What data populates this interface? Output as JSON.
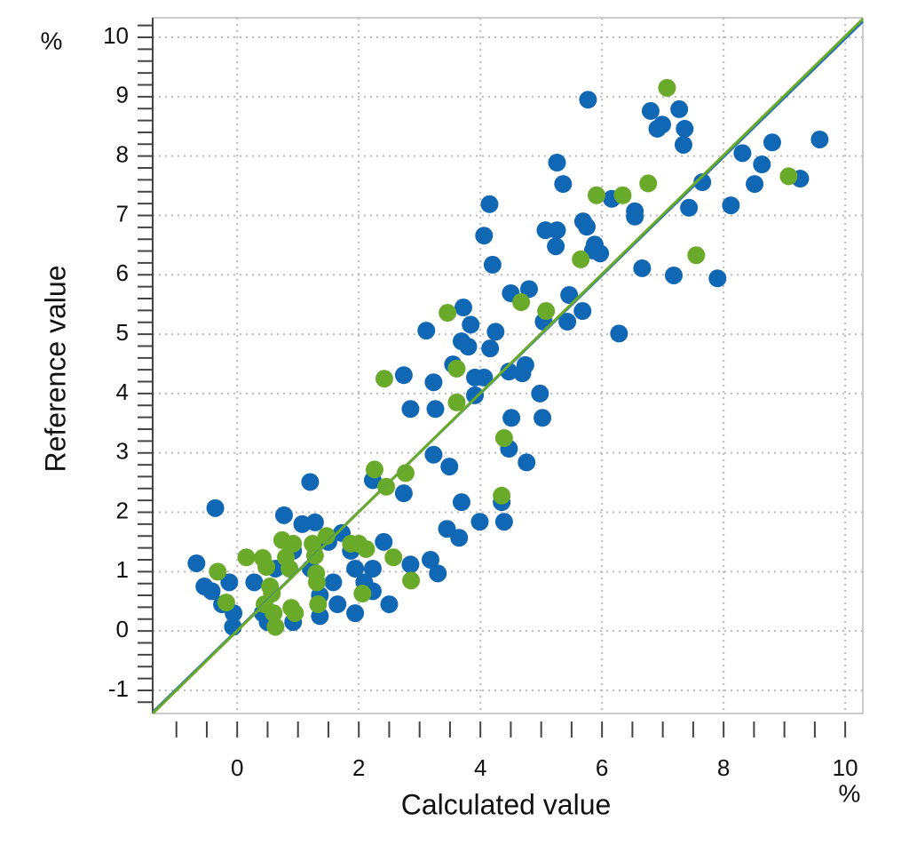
{
  "chart_data": {
    "type": "scatter",
    "x_label": "Calculated value",
    "y_label": "Reference value",
    "x_unit": "%",
    "y_unit": "%",
    "xlim": [
      -1.39,
      10.29
    ],
    "ylim": [
      -1.39,
      10.33
    ],
    "xticks": [
      0,
      2,
      4,
      6,
      8,
      10
    ],
    "yticks": [
      -1,
      0,
      1,
      2,
      3,
      4,
      5,
      6,
      7,
      8,
      9,
      10
    ],
    "grid": true,
    "series": [
      {
        "color": "#1068b5",
        "x": [
          -0.67,
          -0.36,
          -0.54,
          -0.42,
          -0.25,
          -0.06,
          -0.07,
          -0.13,
          0.28,
          0.42,
          0.5,
          0.63,
          0.77,
          1.2,
          1.07,
          1.28,
          0.92,
          1.21,
          1.5,
          1.72,
          1.87,
          1.94,
          2.09,
          2.23,
          2.41,
          1.58,
          1.36,
          1.65,
          1.94,
          0.92,
          1.36,
          2.23,
          2.5,
          2.23,
          2.74,
          2.85,
          2.74,
          2.85,
          3.18,
          3.23,
          3.11,
          3.23,
          3.26,
          3.3,
          3.45,
          3.49,
          3.65,
          3.69,
          3.72,
          3.55,
          3.69,
          3.8,
          3.91,
          3.84,
          4.06,
          3.91,
          3.99,
          4.15,
          4.06,
          4.2,
          4.16,
          4.25,
          4.35,
          4.39,
          4.47,
          4.51,
          4.47,
          4.5,
          4.69,
          4.8,
          4.76,
          4.74,
          4.98,
          5.02,
          5.04,
          5.07,
          5.26,
          5.24,
          5.26,
          5.36,
          5.43,
          5.46,
          5.68,
          5.69,
          5.75,
          5.77,
          5.88,
          5.85,
          5.97,
          6.16,
          6.28,
          6.54,
          6.54,
          6.66,
          6.8,
          6.91,
          6.99,
          7.18,
          7.27,
          7.36,
          7.34,
          7.43,
          7.65,
          7.9,
          8.12,
          8.31,
          8.51,
          8.63,
          8.8,
          9.26,
          9.58
        ],
        "values": [
          1.14,
          2.07,
          0.75,
          0.67,
          0.45,
          0.3,
          0.07,
          0.82,
          0.82,
          0.3,
          0.15,
          1.05,
          1.95,
          2.51,
          1.8,
          1.83,
          1.35,
          1.05,
          1.5,
          1.65,
          1.35,
          1.05,
          0.82,
          1.05,
          1.5,
          0.82,
          0.6,
          0.45,
          0.3,
          0.15,
          0.25,
          0.67,
          0.45,
          2.54,
          4.31,
          3.74,
          2.32,
          1.12,
          1.2,
          2.97,
          5.06,
          4.19,
          3.74,
          0.97,
          1.72,
          2.77,
          1.57,
          2.17,
          5.45,
          4.49,
          4.88,
          4.79,
          4.27,
          5.16,
          4.27,
          3.97,
          1.84,
          7.19,
          6.66,
          6.17,
          4.76,
          5.04,
          2.17,
          1.84,
          4.37,
          3.59,
          3.07,
          5.69,
          4.34,
          5.76,
          2.84,
          4.48,
          4.0,
          3.59,
          5.21,
          6.75,
          6.75,
          6.48,
          7.89,
          7.53,
          5.21,
          5.66,
          5.39,
          6.9,
          6.81,
          8.95,
          6.51,
          6.41,
          6.36,
          7.28,
          5.01,
          6.98,
          7.07,
          6.11,
          8.76,
          8.46,
          8.53,
          5.99,
          8.79,
          8.46,
          8.19,
          7.13,
          7.56,
          5.94,
          7.17,
          8.05,
          7.53,
          7.86,
          8.23,
          7.62,
          8.28
        ]
      },
      {
        "color": "#6aaa2a",
        "x": [
          -0.32,
          0.15,
          -0.18,
          0.42,
          0.48,
          0.54,
          0.57,
          0.45,
          0.6,
          0.63,
          0.74,
          0.8,
          0.92,
          0.86,
          0.89,
          0.95,
          1.24,
          1.28,
          1.3,
          1.31,
          1.33,
          1.47,
          1.87,
          2.0,
          2.12,
          2.06,
          2.26,
          2.45,
          2.42,
          2.57,
          2.77,
          2.86,
          3.46,
          3.61,
          3.61,
          4.39,
          4.35,
          4.67,
          5.08,
          5.65,
          5.91,
          6.34,
          6.76,
          7.07,
          7.55,
          9.07
        ],
        "values": [
          1.0,
          1.24,
          0.48,
          1.23,
          1.08,
          0.75,
          0.63,
          0.45,
          0.3,
          0.07,
          1.53,
          1.24,
          1.47,
          1.05,
          0.39,
          0.3,
          1.47,
          1.27,
          0.97,
          0.82,
          0.45,
          1.6,
          1.47,
          1.47,
          1.38,
          0.63,
          2.72,
          2.43,
          4.25,
          1.24,
          2.66,
          0.85,
          5.36,
          4.42,
          3.85,
          3.25,
          2.28,
          5.54,
          5.39,
          6.26,
          7.34,
          7.34,
          7.54,
          9.15,
          6.33,
          7.66
        ]
      }
    ],
    "fit_lines": [
      {
        "color": "#1f6fb5",
        "x": [
          -1.39,
          10.29
        ],
        "values": [
          -1.37,
          10.27
        ]
      },
      {
        "color": "#6aaa2a",
        "x": [
          -1.39,
          10.29
        ],
        "values": [
          -1.39,
          10.31
        ]
      }
    ]
  }
}
